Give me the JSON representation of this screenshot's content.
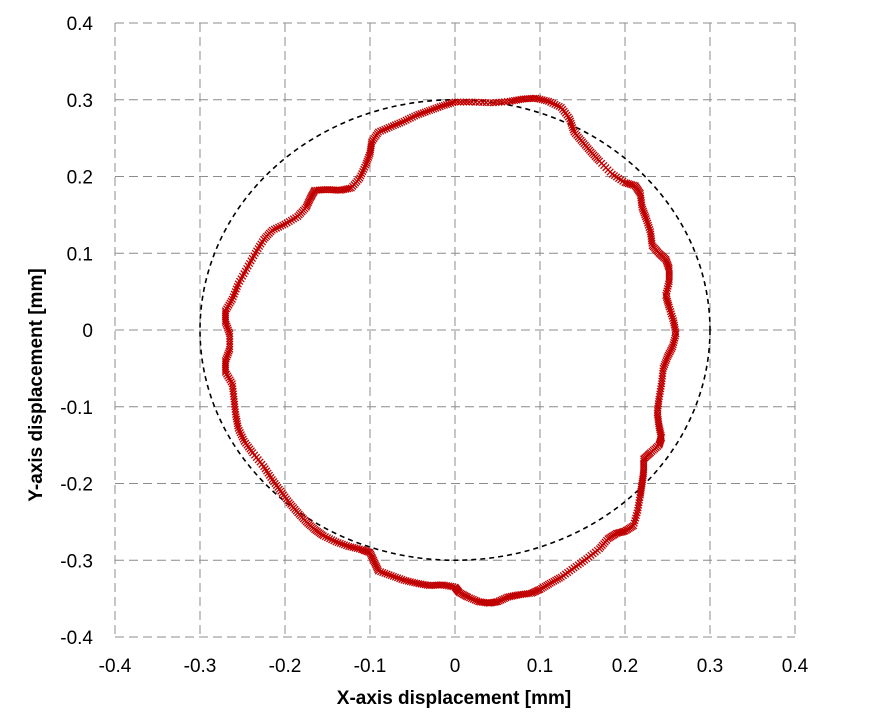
{
  "chart_data": {
    "type": "scatter",
    "xlabel": "X-axis displacement  [mm]",
    "ylabel": "Y-axis displacement  [mm]",
    "xlim": [
      -0.4,
      0.4
    ],
    "ylim": [
      -0.4,
      0.4
    ],
    "x_ticks": [
      "-0.4",
      "-0.3",
      "-0.2",
      "-0.1",
      "0",
      "0.1",
      "0.2",
      "0.3",
      "0.4"
    ],
    "y_ticks": [
      "0.4",
      "0.3",
      "0.2",
      "0.1",
      "0",
      "-0.1",
      "-0.2",
      "-0.3",
      "-0.4"
    ],
    "grid": true,
    "marker": "x",
    "colors": {
      "measured": "#c00000",
      "reference": "#000000",
      "grid": "#8c8c8c"
    },
    "reference_circle": {
      "center": [
        0,
        0
      ],
      "radius": 0.3,
      "line_style": "dashed"
    },
    "series": [
      {
        "marker": "x",
        "points": [
          [
            0.0,
            0.297
          ],
          [
            0.02,
            0.297
          ],
          [
            0.045,
            0.296
          ],
          [
            0.065,
            0.298
          ],
          [
            0.08,
            0.301
          ],
          [
            0.095,
            0.302
          ],
          [
            0.11,
            0.298
          ],
          [
            0.125,
            0.29
          ],
          [
            0.135,
            0.275
          ],
          [
            0.14,
            0.258
          ],
          [
            0.15,
            0.245
          ],
          [
            0.16,
            0.232
          ],
          [
            0.17,
            0.22
          ],
          [
            0.185,
            0.203
          ],
          [
            0.2,
            0.192
          ],
          [
            0.212,
            0.188
          ],
          [
            0.218,
            0.178
          ],
          [
            0.22,
            0.16
          ],
          [
            0.225,
            0.145
          ],
          [
            0.23,
            0.128
          ],
          [
            0.232,
            0.11
          ],
          [
            0.24,
            0.1
          ],
          [
            0.248,
            0.092
          ],
          [
            0.252,
            0.08
          ],
          [
            0.252,
            0.063
          ],
          [
            0.248,
            0.045
          ],
          [
            0.252,
            0.03
          ],
          [
            0.257,
            0.012
          ],
          [
            0.26,
            -0.005
          ],
          [
            0.256,
            -0.022
          ],
          [
            0.25,
            -0.035
          ],
          [
            0.245,
            -0.05
          ],
          [
            0.243,
            -0.07
          ],
          [
            0.24,
            -0.09
          ],
          [
            0.238,
            -0.108
          ],
          [
            0.24,
            -0.125
          ],
          [
            0.243,
            -0.14
          ],
          [
            0.24,
            -0.15
          ],
          [
            0.23,
            -0.16
          ],
          [
            0.222,
            -0.168
          ],
          [
            0.222,
            -0.185
          ],
          [
            0.22,
            -0.2
          ],
          [
            0.218,
            -0.215
          ],
          [
            0.215,
            -0.235
          ],
          [
            0.21,
            -0.255
          ],
          [
            0.2,
            -0.262
          ],
          [
            0.19,
            -0.265
          ],
          [
            0.18,
            -0.272
          ],
          [
            0.17,
            -0.285
          ],
          [
            0.155,
            -0.298
          ],
          [
            0.14,
            -0.31
          ],
          [
            0.125,
            -0.322
          ],
          [
            0.112,
            -0.33
          ],
          [
            0.1,
            -0.338
          ],
          [
            0.09,
            -0.343
          ],
          [
            0.075,
            -0.345
          ],
          [
            0.062,
            -0.348
          ],
          [
            0.05,
            -0.354
          ],
          [
            0.04,
            -0.356
          ],
          [
            0.028,
            -0.354
          ],
          [
            0.015,
            -0.348
          ],
          [
            0.005,
            -0.342
          ],
          [
            0.0,
            -0.335
          ],
          [
            -0.015,
            -0.332
          ],
          [
            -0.03,
            -0.333
          ],
          [
            -0.045,
            -0.33
          ],
          [
            -0.06,
            -0.326
          ],
          [
            -0.075,
            -0.32
          ],
          [
            -0.09,
            -0.314
          ],
          [
            -0.095,
            -0.302
          ],
          [
            -0.1,
            -0.29
          ],
          [
            -0.11,
            -0.286
          ],
          [
            -0.125,
            -0.282
          ],
          [
            -0.14,
            -0.276
          ],
          [
            -0.155,
            -0.268
          ],
          [
            -0.165,
            -0.26
          ],
          [
            -0.175,
            -0.25
          ],
          [
            -0.185,
            -0.238
          ],
          [
            -0.195,
            -0.225
          ],
          [
            -0.205,
            -0.21
          ],
          [
            -0.215,
            -0.195
          ],
          [
            -0.225,
            -0.178
          ],
          [
            -0.238,
            -0.16
          ],
          [
            -0.248,
            -0.145
          ],
          [
            -0.255,
            -0.128
          ],
          [
            -0.258,
            -0.11
          ],
          [
            -0.26,
            -0.09
          ],
          [
            -0.262,
            -0.07
          ],
          [
            -0.27,
            -0.055
          ],
          [
            -0.27,
            -0.04
          ],
          [
            -0.265,
            -0.025
          ],
          [
            -0.265,
            -0.005
          ],
          [
            -0.27,
            0.01
          ],
          [
            -0.27,
            0.025
          ],
          [
            -0.262,
            0.04
          ],
          [
            -0.255,
            0.06
          ],
          [
            -0.245,
            0.08
          ],
          [
            -0.235,
            0.1
          ],
          [
            -0.225,
            0.118
          ],
          [
            -0.215,
            0.13
          ],
          [
            -0.2,
            0.138
          ],
          [
            -0.185,
            0.148
          ],
          [
            -0.175,
            0.16
          ],
          [
            -0.17,
            0.172
          ],
          [
            -0.165,
            0.182
          ],
          [
            -0.15,
            0.183
          ],
          [
            -0.135,
            0.182
          ],
          [
            -0.122,
            0.185
          ],
          [
            -0.112,
            0.198
          ],
          [
            -0.105,
            0.215
          ],
          [
            -0.1,
            0.23
          ],
          [
            -0.098,
            0.245
          ],
          [
            -0.09,
            0.258
          ],
          [
            -0.075,
            0.265
          ],
          [
            -0.06,
            0.272
          ],
          [
            -0.045,
            0.28
          ],
          [
            -0.03,
            0.286
          ],
          [
            -0.015,
            0.292
          ],
          [
            0.0,
            0.297
          ]
        ]
      }
    ]
  }
}
